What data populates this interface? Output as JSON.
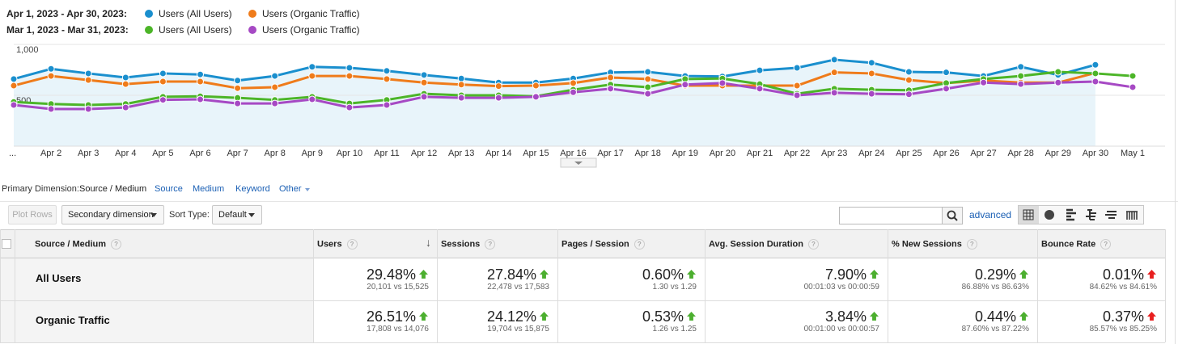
{
  "chart_data": {
    "type": "line",
    "periods": [
      "Apr 1, 2023 - Apr 30, 2023:",
      "Mar 1, 2023 - Mar 31, 2023:"
    ],
    "categories": [
      "...",
      "Apr 2",
      "Apr 3",
      "Apr 4",
      "Apr 5",
      "Apr 6",
      "Apr 7",
      "Apr 8",
      "Apr 9",
      "Apr 10",
      "Apr 11",
      "Apr 12",
      "Apr 13",
      "Apr 14",
      "Apr 15",
      "Apr 16",
      "Apr 17",
      "Apr 18",
      "Apr 19",
      "Apr 20",
      "Apr 21",
      "Apr 22",
      "Apr 23",
      "Apr 24",
      "Apr 25",
      "Apr 26",
      "Apr 27",
      "Apr 28",
      "Apr 29",
      "Apr 30",
      "May 1"
    ],
    "series": [
      {
        "name": "Users (All Users)",
        "color": "#1a8fce",
        "area": true,
        "values": [
          660,
          760,
          715,
          675,
          715,
          705,
          645,
          690,
          780,
          770,
          740,
          700,
          665,
          625,
          625,
          665,
          725,
          730,
          690,
          685,
          745,
          770,
          850,
          820,
          730,
          725,
          690,
          780,
          700,
          800,
          null
        ]
      },
      {
        "name": "Users (Organic Traffic)",
        "color": "#ef7b1a",
        "values": [
          595,
          690,
          650,
          610,
          635,
          635,
          570,
          580,
          690,
          690,
          660,
          625,
          605,
          590,
          595,
          620,
          675,
          660,
          595,
          595,
          595,
          595,
          725,
          715,
          650,
          620,
          645,
          625,
          625,
          720,
          null
        ]
      },
      {
        "name": "Users (All Users)",
        "color": "#4cb528",
        "values": [
          435,
          415,
          405,
          415,
          485,
          490,
          475,
          455,
          485,
          420,
          455,
          515,
          500,
          500,
          490,
          555,
          605,
          580,
          660,
          665,
          610,
          515,
          565,
          555,
          550,
          620,
          660,
          690,
          730,
          715,
          690
        ]
      },
      {
        "name": "Users (Organic Traffic)",
        "color": "#a649c4",
        "values": [
          405,
          365,
          365,
          380,
          455,
          460,
          420,
          420,
          460,
          380,
          405,
          485,
          475,
          475,
          485,
          530,
          565,
          515,
          605,
          620,
          565,
          500,
          525,
          515,
          510,
          565,
          625,
          610,
          625,
          635,
          580
        ]
      }
    ],
    "ylim": [
      0,
      1040
    ],
    "yticks": [
      500,
      {
        "value": 1000,
        "label": "1,000"
      }
    ],
    "grid": true
  },
  "dimension_bar": {
    "label": "Primary Dimension:",
    "active": "Source / Medium",
    "options": [
      "Source",
      "Medium",
      "Keyword",
      "Other"
    ]
  },
  "toolbar": {
    "plot_rows": "Plot Rows",
    "secondary": "Secondary dimension",
    "sort_label": "Sort Type:",
    "sort_value": "Default",
    "advanced": "advanced"
  },
  "table": {
    "columns": [
      {
        "label": "Source / Medium"
      },
      {
        "label": "Users",
        "arrow_color": "#4caf2f"
      },
      {
        "label": "Sessions",
        "arrow_color": "#4caf2f"
      },
      {
        "label": "Pages / Session",
        "arrow_color": "#4caf2f"
      },
      {
        "label": "Avg. Session Duration",
        "arrow_color": "#4caf2f"
      },
      {
        "label": "% New Sessions",
        "arrow_color": "#4caf2f"
      },
      {
        "label": "Bounce Rate",
        "arrow_color": "#e81f1f"
      }
    ],
    "rows": [
      {
        "name": "All Users",
        "cells": [
          {
            "change": "29.48%",
            "compare": "20,101 vs 15,525"
          },
          {
            "change": "27.84%",
            "compare": "22,478 vs 17,583"
          },
          {
            "change": "0.60%",
            "compare": "1.30 vs 1.29"
          },
          {
            "change": "7.90%",
            "compare": "00:01:03 vs 00:00:59"
          },
          {
            "change": "0.29%",
            "compare": "86.88% vs 86.63%"
          },
          {
            "change": "0.01%",
            "compare": "84.62% vs 84.61%"
          }
        ]
      },
      {
        "name": "Organic Traffic",
        "cells": [
          {
            "change": "26.51%",
            "compare": "17,808 vs 14,076"
          },
          {
            "change": "24.12%",
            "compare": "19,704 vs 15,875"
          },
          {
            "change": "0.53%",
            "compare": "1.26 vs 1.25"
          },
          {
            "change": "3.84%",
            "compare": "00:01:00 vs 00:00:57"
          },
          {
            "change": "0.44%",
            "compare": "87.60% vs 87.22%"
          },
          {
            "change": "0.37%",
            "compare": "85.57% vs 85.25%"
          }
        ]
      }
    ]
  }
}
